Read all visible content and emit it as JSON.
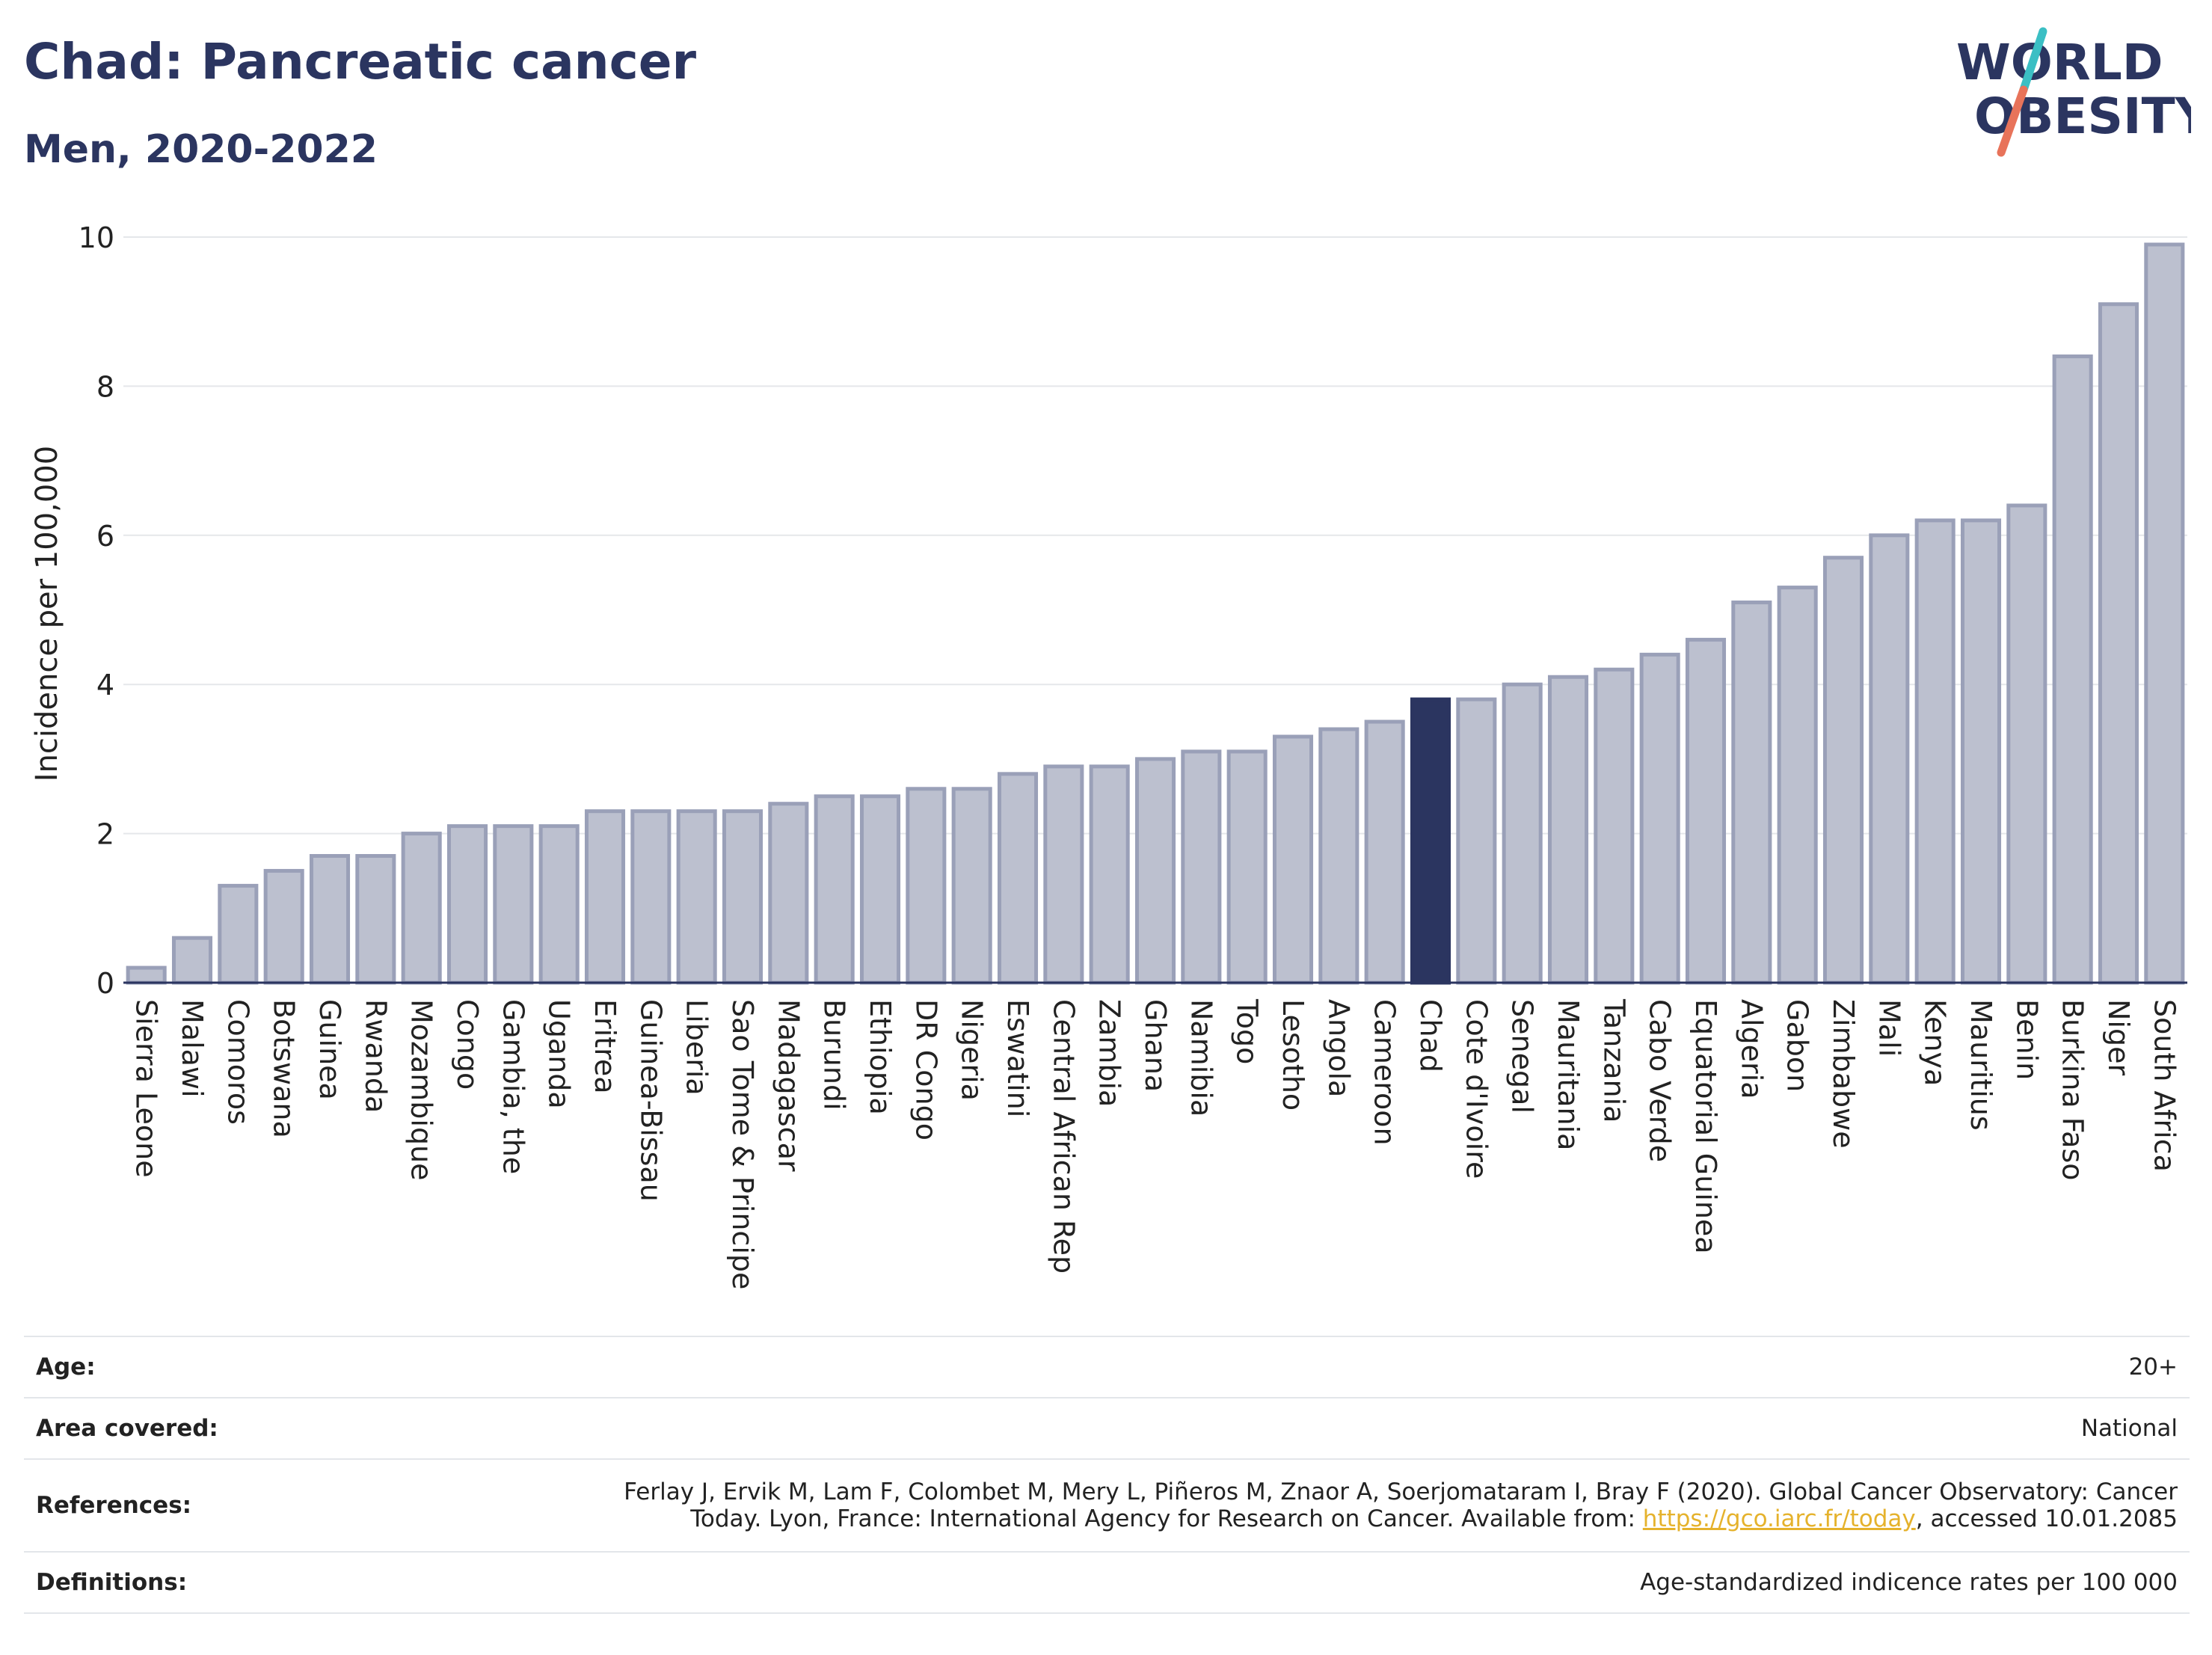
{
  "header": {
    "title": "Chad: Pancreatic cancer",
    "subtitle": "Men, 2020-2022"
  },
  "logo": {
    "line1": "WORLD",
    "line2": "OBESITY",
    "colors": {
      "text": "#2b3560",
      "slash_top": "#3bbfc4",
      "slash_bottom": "#e8735a"
    }
  },
  "chart_data": {
    "type": "bar",
    "title": "",
    "xlabel": "",
    "ylabel": "Incidence per 100,000",
    "ylim": [
      0,
      10
    ],
    "yticks": [
      0,
      2,
      4,
      6,
      8,
      10
    ],
    "grid": true,
    "highlight": "Chad",
    "colors": {
      "bar": "#bcc0cf",
      "bar_edge": "#9aa0b8",
      "highlight": "#2b3560"
    },
    "categories": [
      "Sierra Leone",
      "Malawi",
      "Comoros",
      "Botswana",
      "Guinea",
      "Rwanda",
      "Mozambique",
      "Congo",
      "Gambia, the",
      "Uganda",
      "Eritrea",
      "Guinea-Bissau",
      "Liberia",
      "Sao Tome & Principe",
      "Madagascar",
      "Burundi",
      "Ethiopia",
      "DR Congo",
      "Nigeria",
      "Eswatini",
      "Central African Rep",
      "Zambia",
      "Ghana",
      "Namibia",
      "Togo",
      "Lesotho",
      "Angola",
      "Cameroon",
      "Chad",
      "Cote d'Ivoire",
      "Senegal",
      "Mauritania",
      "Tanzania",
      "Cabo Verde",
      "Equatorial Guinea",
      "Algeria",
      "Gabon",
      "Zimbabwe",
      "Mali",
      "Kenya",
      "Mauritius",
      "Benin",
      "Burkina Faso",
      "Niger",
      "South Africa"
    ],
    "values": [
      0.2,
      0.6,
      1.3,
      1.5,
      1.7,
      1.7,
      2.0,
      2.1,
      2.1,
      2.1,
      2.3,
      2.3,
      2.3,
      2.3,
      2.4,
      2.5,
      2.5,
      2.6,
      2.6,
      2.8,
      2.9,
      2.9,
      3.0,
      3.1,
      3.1,
      3.3,
      3.4,
      3.5,
      3.8,
      3.8,
      4.0,
      4.1,
      4.2,
      4.4,
      4.6,
      5.1,
      5.3,
      5.7,
      6.0,
      6.2,
      6.2,
      6.4,
      8.4,
      9.1,
      9.9
    ]
  },
  "info": {
    "age_label": "Age:",
    "age_value": "20+",
    "area_label": "Area covered:",
    "area_value": "National",
    "references_label": "References:",
    "references_line1": "Ferlay J, Ervik M, Lam F, Colombet M, Mery L, Piñeros M, Znaor A, Soerjomataram I, Bray F (2020). Global Cancer Observatory: Cancer",
    "references_line2_pre": "Today. Lyon, France: International Agency for Research on Cancer. Available from: ",
    "references_link": "https://gco.iarc.fr/today",
    "references_line2_post": ", accessed 10.01.2085",
    "definitions_label": "Definitions:",
    "definitions_value": "Age-standardized indicence rates per 100 000"
  }
}
